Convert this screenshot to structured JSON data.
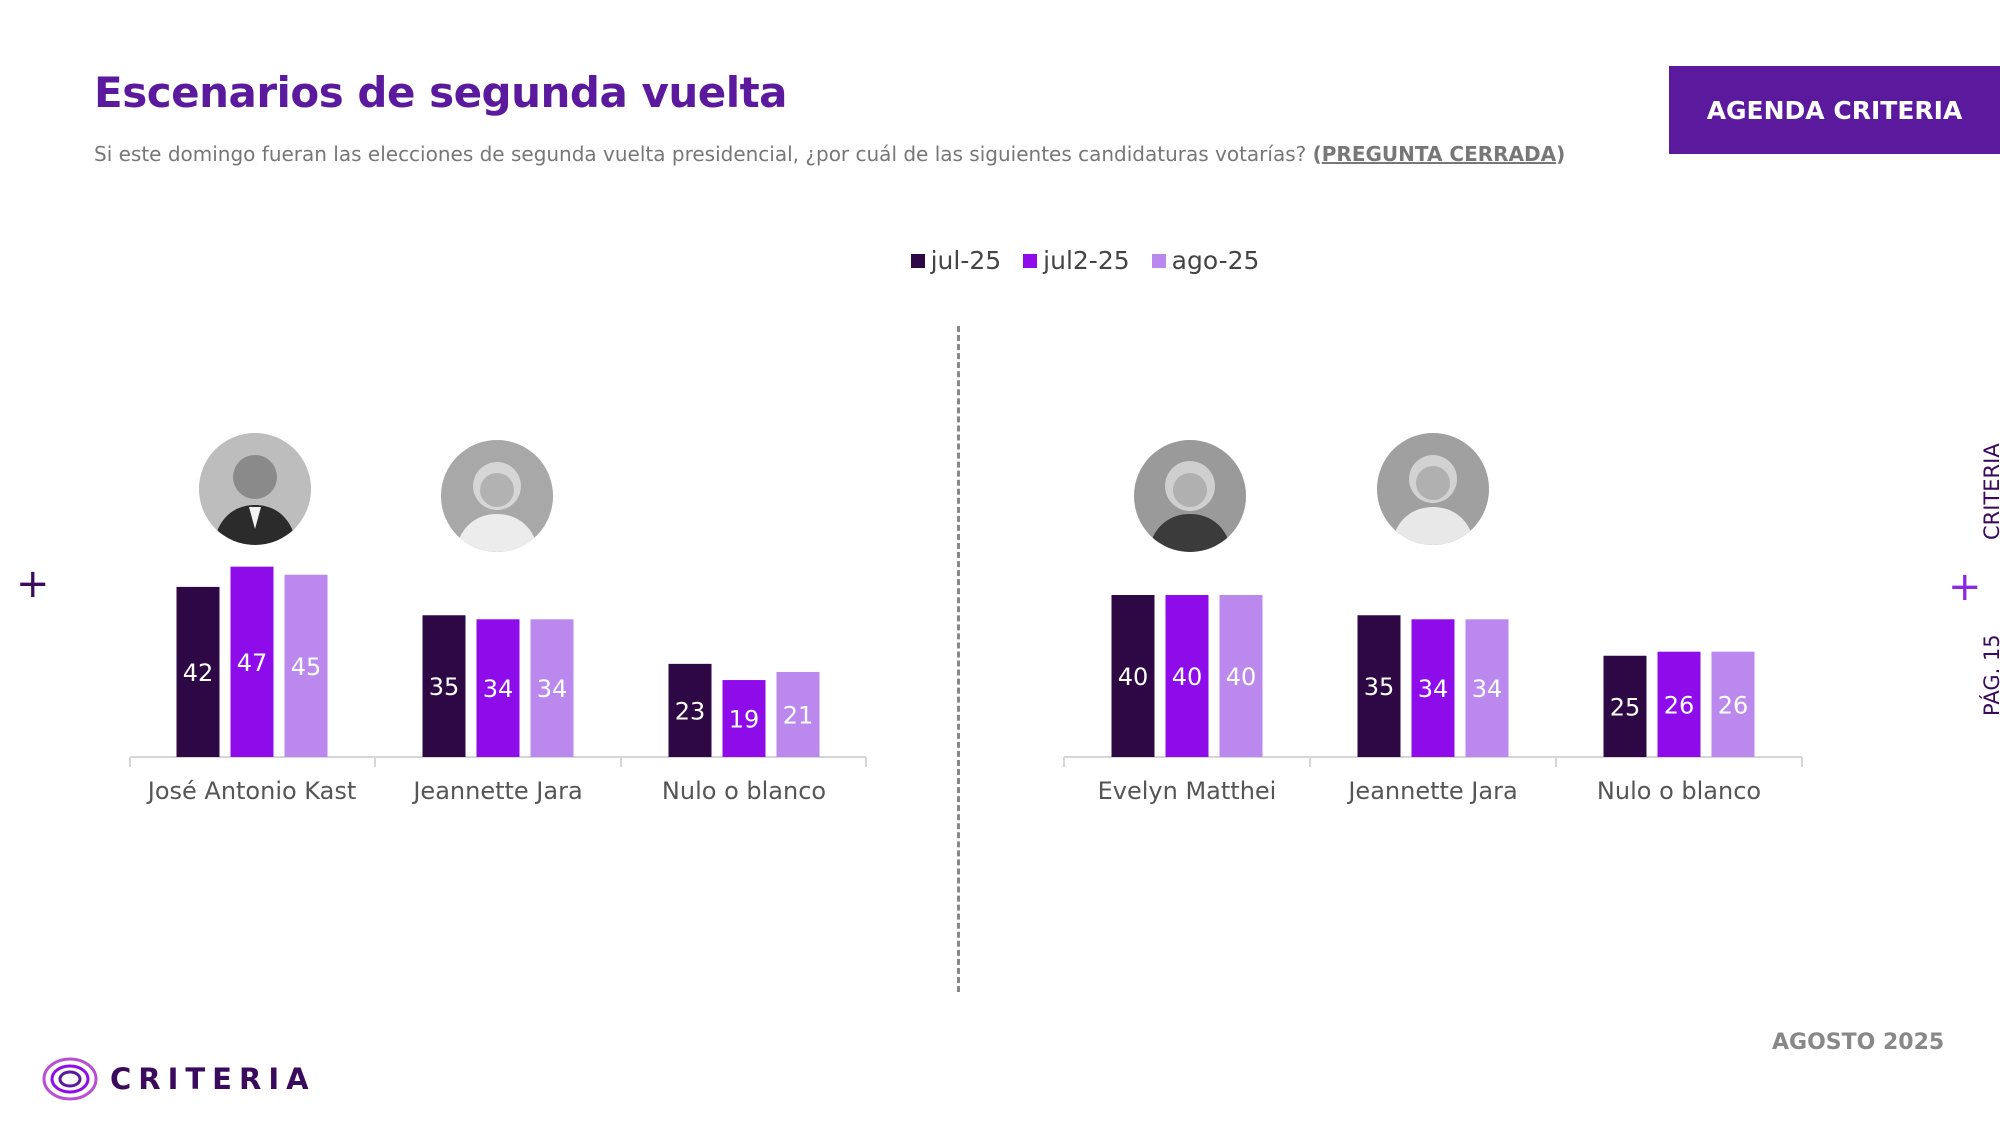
{
  "header": {
    "title": "Escenarios de segunda vuelta",
    "subtitle_main": "Si este domingo fueran las elecciones de segunda vuelta presidencial, ¿por cuál de las siguientes candidaturas votarías? ",
    "subtitle_open": "(",
    "subtitle_closed": "PREGUNTA CERRADA",
    "subtitle_close": ")",
    "badge": "AGENDA CRITERIA"
  },
  "legend": [
    {
      "label": "jul-25",
      "color": "#2d0845"
    },
    {
      "label": "jul2-25",
      "color": "#8f0cea"
    },
    {
      "label": "ago-25",
      "color": "#bb88ee"
    }
  ],
  "chart_data": [
    {
      "type": "bar",
      "categories": [
        "José Antonio Kast",
        "Jeannette Jara",
        "Nulo o blanco"
      ],
      "series": [
        {
          "name": "jul-25",
          "values": [
            42,
            35,
            23
          ]
        },
        {
          "name": "jul2-25",
          "values": [
            47,
            34,
            19
          ]
        },
        {
          "name": "ago-25",
          "values": [
            45,
            34,
            21
          ]
        }
      ],
      "ylim": [
        0,
        50
      ],
      "grid": false,
      "legend_position": "top"
    },
    {
      "type": "bar",
      "categories": [
        "Evelyn Matthei",
        "Jeannette Jara",
        "Nulo o blanco"
      ],
      "series": [
        {
          "name": "jul-25",
          "values": [
            40,
            35,
            25
          ]
        },
        {
          "name": "jul2-25",
          "values": [
            40,
            34,
            26
          ]
        },
        {
          "name": "ago-25",
          "values": [
            40,
            34,
            26
          ]
        }
      ],
      "ylim": [
        0,
        50
      ],
      "grid": false,
      "legend_position": "top"
    }
  ],
  "side": {
    "criteria": "CRITERIA",
    "page": "PÁG. 15"
  },
  "footer": {
    "date": "AGOSTO 2025",
    "logo": "CRITERIA"
  },
  "colors": {
    "brand": "#5b1a9e",
    "dark": "#2d0845",
    "mid": "#8f0cea",
    "light": "#bb88ee"
  }
}
